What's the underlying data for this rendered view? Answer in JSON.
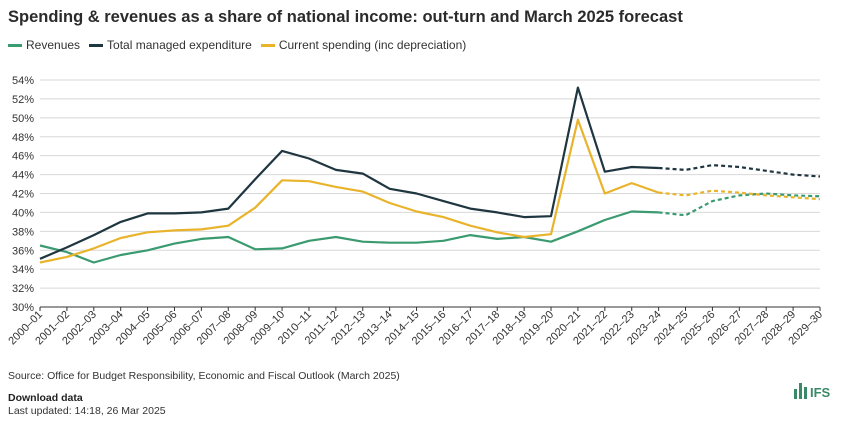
{
  "title": "Spending & revenues as a share of national income: out-turn and March 2025 forecast",
  "source": "Source: Office for Budget Responsibility, Economic and Fiscal Outlook (March 2025)",
  "download_label": "Download data",
  "last_updated": "Last updated: 14:18, 26 Mar 2025",
  "logo_text": "IFS",
  "colors": {
    "revenues": "#3a9a70",
    "tme": "#1f3640",
    "current": "#e9b32c",
    "grid": "#d8d8d8",
    "axis": "#333333"
  },
  "chart_data": {
    "type": "line",
    "title": "Spending & revenues as a share of national income: out-turn and March 2025 forecast",
    "xlabel": "",
    "ylabel": "",
    "ylim": [
      30,
      54
    ],
    "yticks": [
      "30%",
      "32%",
      "34%",
      "36%",
      "38%",
      "40%",
      "42%",
      "44%",
      "46%",
      "48%",
      "50%",
      "52%",
      "54%"
    ],
    "grid": true,
    "legend_position": "top-left",
    "forecast_start": "2023–24",
    "categories": [
      "2000–01",
      "2001–02",
      "2002–03",
      "2003–04",
      "2004–05",
      "2005–06",
      "2006–07",
      "2007–08",
      "2008–09",
      "2009–10",
      "2010–11",
      "2011–12",
      "2012–13",
      "2013–14",
      "2014–15",
      "2015–16",
      "2016–17",
      "2017–18",
      "2018–19",
      "2019–20",
      "2020–21",
      "2021–22",
      "2022–23",
      "2023–24",
      "2024–25",
      "2025–26",
      "2026–27",
      "2027–28",
      "2028–29",
      "2029–30"
    ],
    "series": [
      {
        "name": "Revenues",
        "key": "revenues",
        "values": [
          36.5,
          35.8,
          34.7,
          35.5,
          36.0,
          36.7,
          37.2,
          37.4,
          36.1,
          36.2,
          37.0,
          37.4,
          36.9,
          36.8,
          36.8,
          37.0,
          37.6,
          37.2,
          37.4,
          36.9,
          38.0,
          39.2,
          40.1,
          40.0,
          39.7,
          41.2,
          41.8,
          42.0,
          41.8,
          41.7
        ]
      },
      {
        "name": "Total managed expenditure",
        "key": "tme",
        "values": [
          35.1,
          36.3,
          37.6,
          39.0,
          39.9,
          39.9,
          40.0,
          40.4,
          43.5,
          46.5,
          45.7,
          44.5,
          44.1,
          42.5,
          42.0,
          41.2,
          40.4,
          40.0,
          39.5,
          39.6,
          53.2,
          44.3,
          44.8,
          44.7,
          44.5,
          45.0,
          44.8,
          44.4,
          44.0,
          43.8
        ]
      },
      {
        "name": "Current spending (inc depreciation)",
        "key": "current",
        "values": [
          34.7,
          35.3,
          36.2,
          37.3,
          37.9,
          38.1,
          38.2,
          38.6,
          40.5,
          43.4,
          43.3,
          42.7,
          42.2,
          41.0,
          40.1,
          39.5,
          38.6,
          37.9,
          37.4,
          37.7,
          49.8,
          42.0,
          43.1,
          42.1,
          41.8,
          42.3,
          42.1,
          41.8,
          41.6,
          41.4
        ]
      }
    ]
  }
}
